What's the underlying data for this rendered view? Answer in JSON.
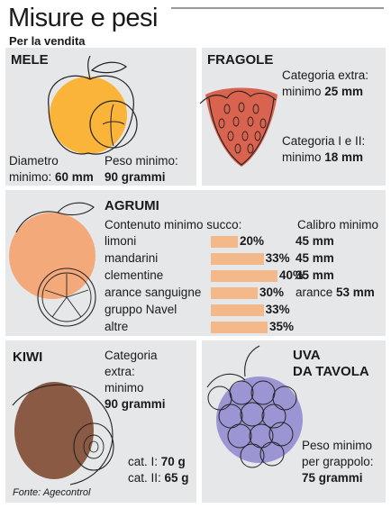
{
  "header": {
    "title": "Misure e pesi",
    "subtitle": "Per la vendita"
  },
  "mele": {
    "title": "MELE",
    "diam_l1": "Diametro",
    "diam_l2": "minimo: ",
    "diam_val": "60 mm",
    "peso_l1": "Peso minimo:",
    "peso_val": "90 grammi"
  },
  "fragole": {
    "title": "FRAGOLE",
    "cat_extra": "Categoria extra:",
    "extra_l2": "minimo ",
    "extra_val": "25 mm",
    "cat_12": "Categoria I e II:",
    "c12_l2": "minimo ",
    "c12_val": "18 mm"
  },
  "agrumi": {
    "title": "AGRUMI",
    "succo_title": "Contenuto minimo succo:",
    "calibro_title": "Calibro minimo",
    "rows": [
      {
        "name": "limoni",
        "pct": "20%",
        "value": 20,
        "calibro": "45 mm"
      },
      {
        "name": "mandarini",
        "pct": "33%",
        "value": 33,
        "calibro": "45 mm"
      },
      {
        "name": "clementine",
        "pct": "40%",
        "value": 40,
        "calibro": "35 mm"
      },
      {
        "name": "arance sanguigne",
        "pct": "30%",
        "value": 30,
        "calibro": "arance ",
        "calibro_bold": "53 mm"
      },
      {
        "name": "gruppo Navel",
        "pct": "33%",
        "value": 33
      },
      {
        "name": "altre",
        "pct": "35%",
        "value": 35
      }
    ]
  },
  "kiwi": {
    "title": "KIWI",
    "l1": "Categoria",
    "l2": "extra:",
    "l3": "minimo",
    "l4": "90 grammi",
    "c1": "cat. I: ",
    "c1v": "70 g",
    "c2": "cat. II: ",
    "c2v": "65 g"
  },
  "uva": {
    "title1": "UVA",
    "title2": "DA TAVOLA",
    "p1": "Peso minimo",
    "p2": "per grappolo:",
    "p3": "75 grammi"
  },
  "source": "Fonte: Agecontrol",
  "colors": {
    "panel": "#e6e7e9",
    "apple": "#fbb43a",
    "strawberry": "#d9634e",
    "citrus": "#f4a97a",
    "kiwi": "#8a5a44",
    "grape": "#9b95d3"
  }
}
